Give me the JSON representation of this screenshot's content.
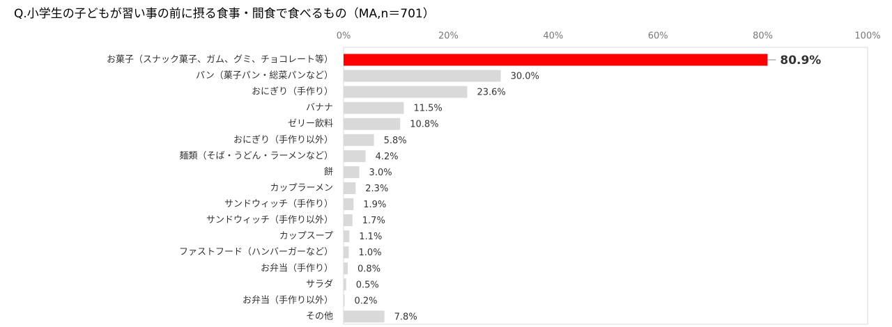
{
  "chart_data": {
    "type": "barh",
    "title": "Q.小学生の子どもが習い事の前に摂る食事・間食で食べるもの（MA,n＝701）",
    "categories": [
      "お菓子（スナック菓子、ガム、グミ、チョコレート等）",
      "パン（菓子パン・総菜パンなど）",
      "おにぎり（手作り）",
      "バナナ",
      "ゼリー飲料",
      "おにぎり（手作り以外）",
      "麺類（そば・うどん・ラーメンなど）",
      "餅",
      "カップラーメン",
      "サンドウィッチ（手作り）",
      "サンドウィッチ（手作り以外）",
      "カップスープ",
      "ファストフード（ハンバーガーなど）",
      "お弁当（手作り）",
      "サラダ",
      "お弁当（手作り以外）",
      "その他"
    ],
    "values": [
      80.9,
      30.0,
      23.6,
      11.5,
      10.8,
      5.8,
      4.2,
      3.0,
      2.3,
      1.9,
      1.7,
      1.1,
      1.0,
      0.8,
      0.5,
      0.2,
      7.8
    ],
    "value_labels": [
      "80.9%",
      "30.0%",
      "23.6%",
      "11.5%",
      "10.8%",
      "5.8%",
      "4.2%",
      "3.0%",
      "2.3%",
      "1.9%",
      "1.7%",
      "1.1%",
      "1.0%",
      "0.8%",
      "0.5%",
      "0.2%",
      "7.8%"
    ],
    "colors": [
      "#ff0000",
      "#d9d9d9",
      "#d9d9d9",
      "#d9d9d9",
      "#d9d9d9",
      "#d9d9d9",
      "#d9d9d9",
      "#d9d9d9",
      "#d9d9d9",
      "#d9d9d9",
      "#d9d9d9",
      "#d9d9d9",
      "#d9d9d9",
      "#d9d9d9",
      "#d9d9d9",
      "#d9d9d9",
      "#d9d9d9"
    ],
    "xlim": [
      0,
      100
    ],
    "xticks": [
      {
        "value": 0,
        "label": "0%"
      },
      {
        "value": 20,
        "label": "20%"
      },
      {
        "value": 40,
        "label": "40%"
      },
      {
        "value": 60,
        "label": "60%"
      },
      {
        "value": 80,
        "label": "80%"
      },
      {
        "value": 100,
        "label": "100%"
      }
    ]
  }
}
